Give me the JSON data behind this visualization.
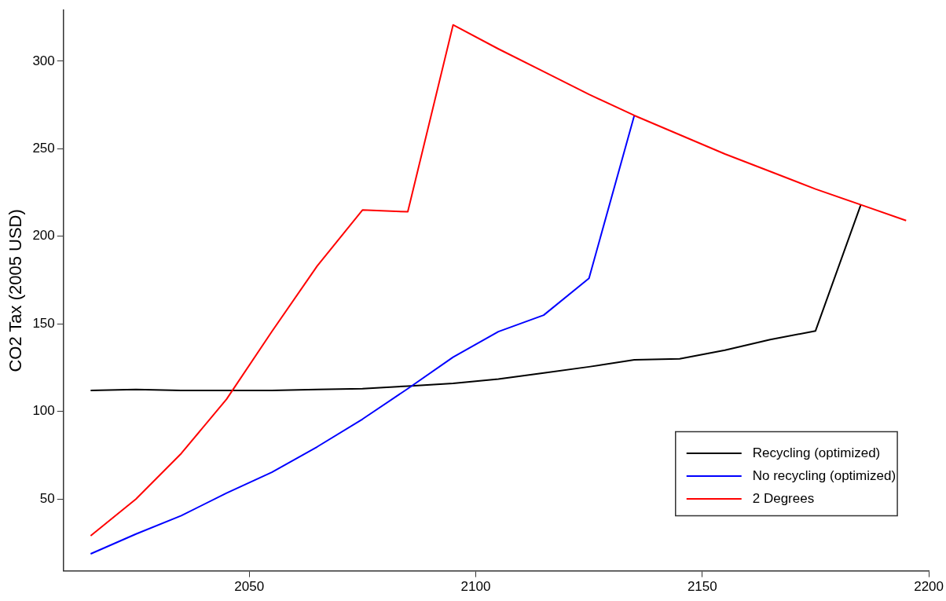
{
  "chart_data": {
    "type": "line",
    "ylabel": "CO2 Tax (2005 USD)",
    "x": [
      2015,
      2025,
      2035,
      2045,
      2055,
      2065,
      2075,
      2085,
      2095,
      2105,
      2115,
      2125,
      2135,
      2145,
      2155,
      2165,
      2175,
      2185,
      2195
    ],
    "series": [
      {
        "name": "Recycling (optimized)",
        "color": "#000000",
        "values": [
          112,
          112.5,
          112,
          112,
          112,
          112.5,
          113,
          114.5,
          116,
          118.5,
          122,
          125.5,
          129.5,
          130,
          135,
          141,
          146,
          218,
          null
        ]
      },
      {
        "name": "No recycling (optimized)",
        "color": "#0000ff",
        "values": [
          18.7,
          30,
          40.5,
          53.4,
          65.3,
          79.8,
          95.6,
          113,
          131,
          145.6,
          155,
          176,
          269,
          null,
          null,
          null,
          null,
          null,
          null
        ]
      },
      {
        "name": "2 Degrees",
        "color": "#ff0000",
        "values": [
          29,
          50,
          76,
          107,
          145.6,
          183,
          215,
          214,
          320.7,
          307,
          294,
          281,
          269,
          258,
          247,
          237,
          227,
          218,
          209
        ]
      }
    ],
    "xlim": [
      2009,
      2200
    ],
    "xticks": [
      2050,
      2100,
      2150,
      2200
    ],
    "ylim": [
      9,
      329
    ],
    "yticks": [
      50,
      100,
      150,
      200,
      250,
      300
    ],
    "grid": false,
    "legend": "bottom right",
    "marker": "none",
    "line_style": "solid"
  }
}
